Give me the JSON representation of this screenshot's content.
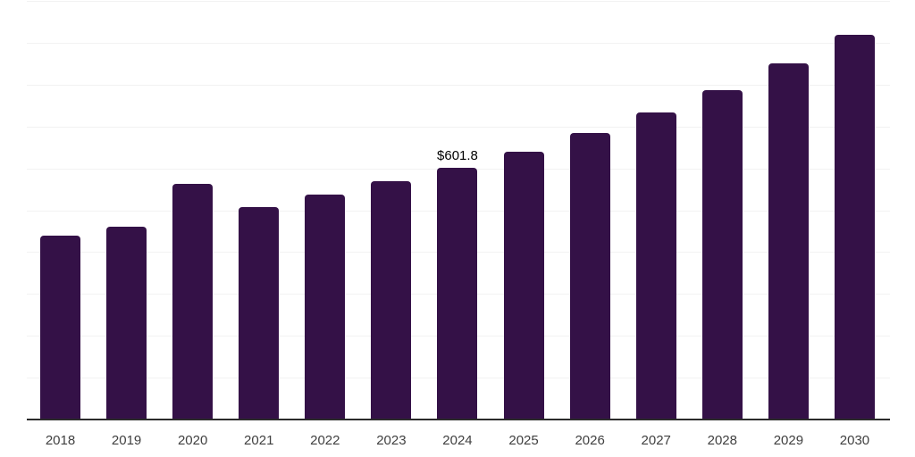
{
  "chart_data": {
    "type": "bar",
    "title": "",
    "xlabel": "",
    "ylabel": "",
    "categories": [
      "2018",
      "2019",
      "2020",
      "2021",
      "2022",
      "2023",
      "2024",
      "2025",
      "2026",
      "2027",
      "2028",
      "2029",
      "2030"
    ],
    "values": [
      439.2,
      460.6,
      563.0,
      507.4,
      537.3,
      569.3,
      601.8,
      639.7,
      684.4,
      733.5,
      786.8,
      850.8,
      919.0
    ],
    "annotation": {
      "category": "2024",
      "text": "$601.8"
    },
    "ylim": [
      0,
      1000
    ],
    "gridline_step": 100,
    "grid": true,
    "legend": false,
    "colors": {
      "bar": "#341147",
      "gridline": "#f2f2f2",
      "axis_line": "#2b2b2b",
      "tick_label": "#404040",
      "annotation": "#000000",
      "background": "#ffffff"
    }
  }
}
